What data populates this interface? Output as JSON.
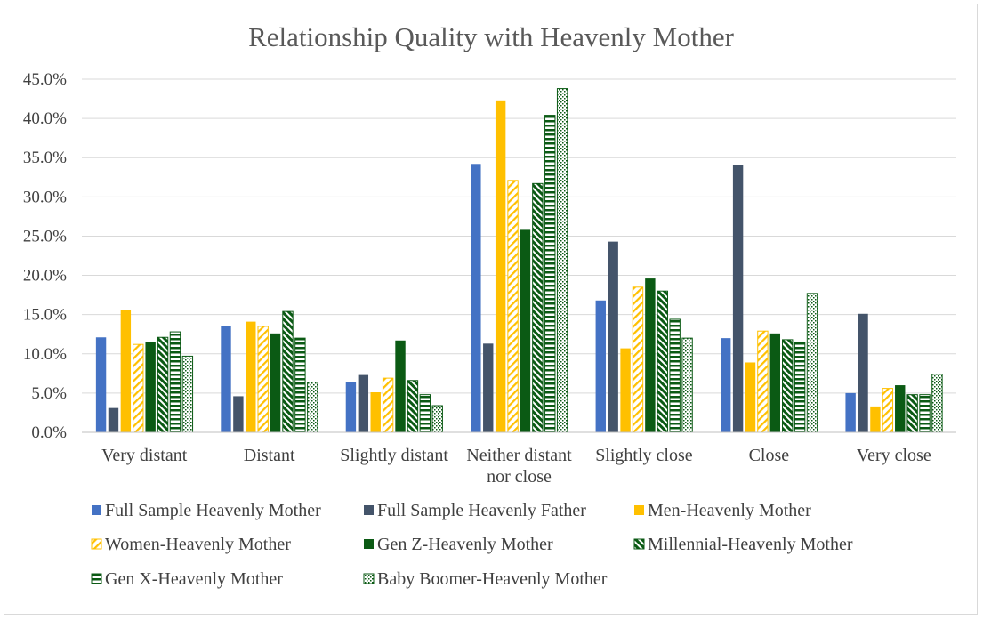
{
  "chart_data": {
    "type": "bar",
    "title": "Relationship Quality with Heavenly Mother",
    "xlabel": "",
    "ylabel": "",
    "ylim": [
      0,
      45
    ],
    "y_tick_labels": [
      "0.0%",
      "5.0%",
      "10.0%",
      "15.0%",
      "20.0%",
      "25.0%",
      "30.0%",
      "35.0%",
      "40.0%",
      "45.0%"
    ],
    "grid": true,
    "legend_position": "bottom",
    "categories": [
      "Very distant",
      "Distant",
      "Slightly distant",
      "Neither distant nor close",
      "Slightly close",
      "Close",
      "Very close"
    ],
    "series": [
      {
        "name": "Full Sample Heavenly Mother",
        "color": "#4472c4",
        "pattern": "solid",
        "values": [
          12.1,
          13.6,
          6.4,
          34.2,
          16.8,
          12.0,
          5.0
        ]
      },
      {
        "name": "Full Sample Heavenly Father",
        "color": "#44546a",
        "pattern": "solid",
        "values": [
          3.1,
          4.6,
          7.3,
          11.3,
          24.3,
          34.1,
          15.1
        ]
      },
      {
        "name": "Men-Heavenly Mother",
        "color": "#ffc000",
        "pattern": "solid",
        "values": [
          15.6,
          14.1,
          5.1,
          42.3,
          10.7,
          8.9,
          3.3
        ]
      },
      {
        "name": "Women-Heavenly Mother",
        "color": "#ffc000",
        "pattern": "diagonal",
        "values": [
          11.2,
          13.5,
          6.9,
          32.1,
          18.5,
          12.9,
          5.6
        ]
      },
      {
        "name": "Gen Z-Heavenly Mother",
        "color": "#0b5a14",
        "pattern": "solid",
        "values": [
          11.5,
          12.6,
          11.7,
          25.8,
          19.6,
          12.6,
          6.0
        ]
      },
      {
        "name": "Millennial-Heavenly Mother",
        "color": "#0b5a14",
        "pattern": "dark-diagonal",
        "values": [
          12.1,
          15.4,
          6.6,
          31.7,
          18.0,
          11.8,
          4.8
        ]
      },
      {
        "name": "Gen X-Heavenly Mother",
        "color": "#0b5a14",
        "pattern": "horizontal",
        "values": [
          12.8,
          12.0,
          4.8,
          40.4,
          14.4,
          11.4,
          4.8
        ]
      },
      {
        "name": "Baby Boomer-Heavenly Mother",
        "color": "#0b5a14",
        "pattern": "dotted",
        "values": [
          9.7,
          6.4,
          3.4,
          43.8,
          12.0,
          17.7,
          7.4
        ]
      }
    ]
  }
}
